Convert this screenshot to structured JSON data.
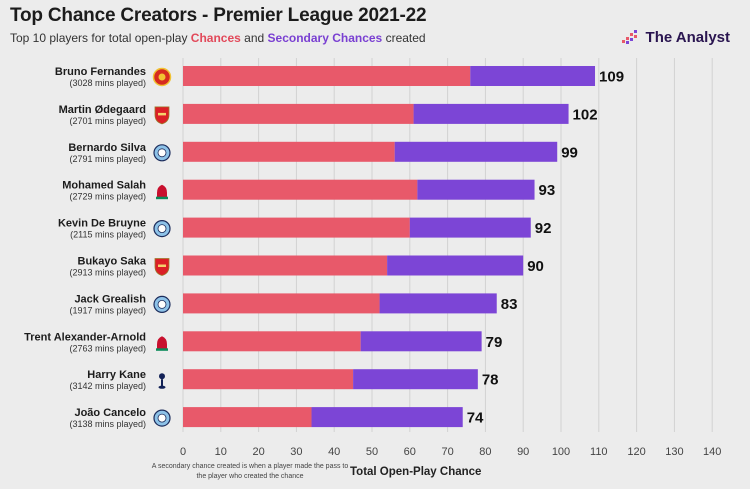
{
  "header": {
    "title": "Top Chance Creators - Premier League 2021-22",
    "subtitle_pre": "Top 10 players for total open-play ",
    "subtitle_red": "Chances",
    "subtitle_mid": " and ",
    "subtitle_purple": "Secondary Chances",
    "subtitle_post": " created",
    "brand": "The Analyst"
  },
  "footnote": "A secondary chance created is when a player made the pass to the player who created the chance",
  "colors": {
    "chances": "#e8596a",
    "secondary": "#7c45d6",
    "grid": "#d2d2d2",
    "badge_united": "#d62a20",
    "badge_arsenal": "#db1f26",
    "badge_city": "#8dc2e8",
    "badge_liverpool": "#c8102e",
    "badge_spurs": "#132257"
  },
  "chart_data": {
    "type": "bar",
    "orientation": "horizontal",
    "stacked": true,
    "title": "Top Chance Creators - Premier League 2021-22",
    "subtitle": "Top 10 players for total open-play Chances and Secondary Chances created",
    "xlabel": "Total Open-Play Chance",
    "xlim": [
      0,
      140
    ],
    "xticks": [
      0,
      10,
      20,
      30,
      40,
      50,
      60,
      70,
      80,
      90,
      100,
      110,
      120,
      130,
      140
    ],
    "grid": true,
    "categories": [
      "Bruno Fernandes",
      "Martin Ødegaard",
      "Bernardo Silva",
      "Mohamed Salah",
      "Kevin De Bruyne",
      "Bukayo Saka",
      "Jack Grealish",
      "Trent Alexander-Arnold",
      "Harry Kane",
      "João Cancelo"
    ],
    "minutes": [
      "(3028 mins played)",
      "(2701 mins played)",
      "(2791 mins played)",
      "(2729 mins played)",
      "(2115 mins played)",
      "(2913 mins played)",
      "(1917 mins played)",
      "(2763 mins played)",
      "(3142 mins played)",
      "(3138 mins played)"
    ],
    "badges": [
      "united",
      "arsenal",
      "city",
      "liverpool",
      "city",
      "arsenal",
      "city",
      "liverpool",
      "spurs",
      "city"
    ],
    "series": [
      {
        "name": "Chances",
        "values": [
          76,
          61,
          56,
          62,
          60,
          54,
          52,
          47,
          45,
          34
        ]
      },
      {
        "name": "Secondary Chances",
        "values": [
          33,
          41,
          43,
          31,
          32,
          36,
          31,
          32,
          33,
          40
        ]
      }
    ],
    "totals": [
      109,
      102,
      99,
      93,
      92,
      90,
      83,
      79,
      78,
      74
    ]
  }
}
